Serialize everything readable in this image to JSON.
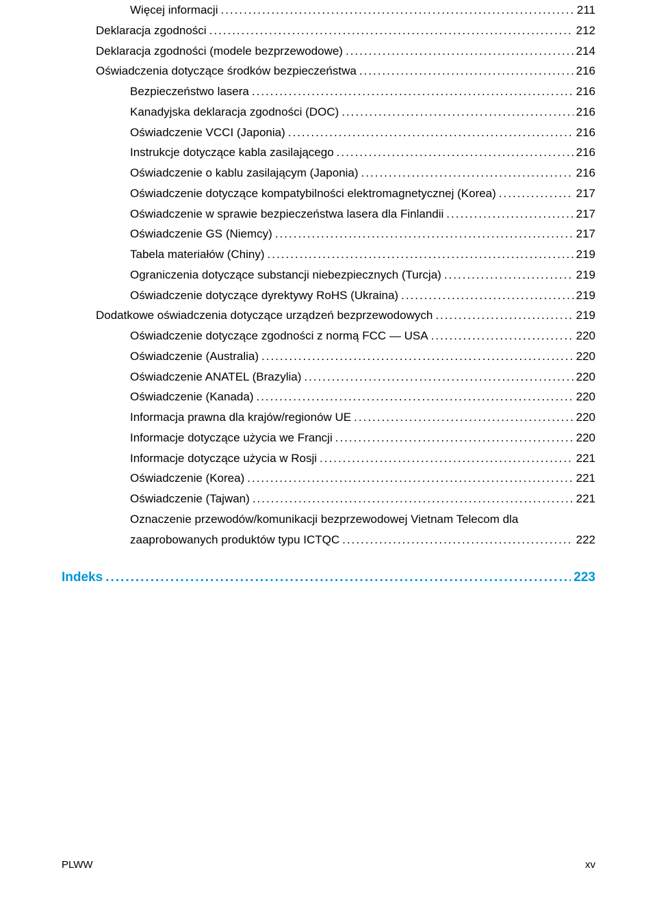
{
  "toc": [
    {
      "label": "Więcej informacji",
      "page": "211",
      "indent": 2
    },
    {
      "label": "Deklaracja zgodności",
      "page": "212",
      "indent": 1
    },
    {
      "label": "Deklaracja zgodności (modele bezprzewodowe)",
      "page": "214",
      "indent": 1
    },
    {
      "label": "Oświadczenia dotyczące środków bezpieczeństwa",
      "page": "216",
      "indent": 1
    },
    {
      "label": "Bezpieczeństwo lasera",
      "page": "216",
      "indent": 2
    },
    {
      "label": "Kanadyjska deklaracja zgodności (DOC)",
      "page": "216",
      "indent": 2
    },
    {
      "label": "Oświadczenie VCCI (Japonia)",
      "page": "216",
      "indent": 2
    },
    {
      "label": "Instrukcje dotyczące kabla zasilającego",
      "page": "216",
      "indent": 2
    },
    {
      "label": "Oświadczenie o kablu zasilającym (Japonia)",
      "page": "216",
      "indent": 2
    },
    {
      "label": "Oświadczenie dotyczące kompatybilności elektromagnetycznej (Korea)",
      "page": "217",
      "indent": 2
    },
    {
      "label": "Oświadczenie w sprawie bezpieczeństwa lasera dla Finlandii",
      "page": "217",
      "indent": 2
    },
    {
      "label": "Oświadczenie GS (Niemcy)",
      "page": "217",
      "indent": 2
    },
    {
      "label": "Tabela materiałów (Chiny)",
      "page": "219",
      "indent": 2
    },
    {
      "label": "Ograniczenia dotyczące substancji niebezpiecznych (Turcja)",
      "page": "219",
      "indent": 2
    },
    {
      "label": "Oświadczenie dotyczące dyrektywy RoHS (Ukraina)",
      "page": "219",
      "indent": 2
    },
    {
      "label": "Dodatkowe oświadczenia dotyczące urządzeń bezprzewodowych",
      "page": "219",
      "indent": 1
    },
    {
      "label": "Oświadczenie dotyczące zgodności z normą FCC — USA",
      "page": "220",
      "indent": 2
    },
    {
      "label": "Oświadczenie (Australia)",
      "page": "220",
      "indent": 2
    },
    {
      "label": "Oświadczenie ANATEL (Brazylia)",
      "page": "220",
      "indent": 2
    },
    {
      "label": "Oświadczenie (Kanada)",
      "page": "220",
      "indent": 2
    },
    {
      "label": "Informacja prawna dla krajów/regionów UE",
      "page": "220",
      "indent": 2
    },
    {
      "label": "Informacje dotyczące użycia we Francji",
      "page": "220",
      "indent": 2
    },
    {
      "label": "Informacje dotyczące użycia w Rosji",
      "page": "221",
      "indent": 2
    },
    {
      "label": "Oświadczenie (Korea)",
      "page": "221",
      "indent": 2
    },
    {
      "label": "Oświadczenie (Tajwan)",
      "page": "221",
      "indent": 2
    }
  ],
  "wrapEntry": {
    "line1": "Oznaczenie przewodów/komunikacji bezprzewodowej Vietnam Telecom dla",
    "line2": "zaaprobowanych produktów typu ICTQC",
    "page": "222"
  },
  "index": {
    "label": "Indeks",
    "page": "223"
  },
  "footer": {
    "left": "PLWW",
    "right": "xv"
  },
  "colors": {
    "text": "#000000",
    "accent": "#0096d6",
    "bg": "#ffffff"
  },
  "font": {
    "body_size": 17,
    "index_size": 19,
    "footer_size": 15,
    "line_height": 1.75
  }
}
